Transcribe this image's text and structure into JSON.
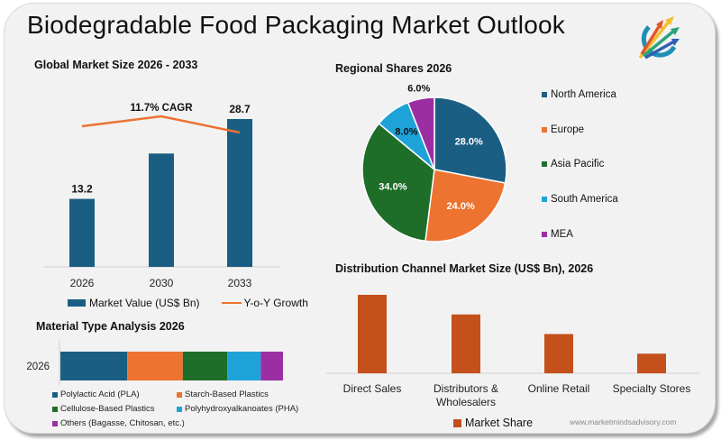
{
  "header": {
    "title": "Biodegradable Food Packaging Market Outlook",
    "logo": "growth-arrows-logo-icon"
  },
  "footer": {
    "url": "www.marketmindsadvisory.com"
  },
  "colors": {
    "navy": "#1a5f83",
    "orange": "#ec7330",
    "green": "#1e6e2a",
    "cyan": "#1ea3d9",
    "purple": "#9b2ea3",
    "rust": "#c4501b"
  },
  "chart_data": [
    {
      "id": "global_market",
      "type": "bar",
      "title": "Global Market Size 2026 - 2033",
      "categories": [
        "2026",
        "2030",
        "2033"
      ],
      "series": [
        {
          "name": "Market Value (US$ Bn)",
          "values": [
            13.2,
            22.0,
            28.7
          ],
          "data_labels": [
            "13.2",
            null,
            "28.7"
          ]
        },
        {
          "name": "Y-o-Y Growth",
          "type": "line",
          "values": [
            null,
            null,
            null
          ]
        }
      ],
      "annotation": "11.7% CAGR",
      "ylim": [
        0,
        30
      ],
      "grid": false,
      "legend": "bottom"
    },
    {
      "id": "regional_shares",
      "type": "pie",
      "title": "Regional Shares 2026",
      "labels": [
        "North America",
        "Europe",
        "Asia Pacific",
        "South America",
        "MEA"
      ],
      "values": [
        28.0,
        24.0,
        34.0,
        8.0,
        6.0
      ],
      "data_labels": [
        "28.0%",
        "24.0%",
        "34.0%",
        "8.0%",
        "6.0%"
      ],
      "legend": "right"
    },
    {
      "id": "material_type",
      "type": "bar",
      "orientation": "horizontal-stacked",
      "title": "Material Type Analysis 2026",
      "categories": [
        "2026"
      ],
      "series": [
        {
          "name": "Polylactic Acid (PLA)",
          "values": [
            30
          ]
        },
        {
          "name": "Starch-Based Plastics",
          "values": [
            25
          ]
        },
        {
          "name": "Cellulose-Based Plastics",
          "values": [
            20
          ]
        },
        {
          "name": "Polyhydroxyalkanoates (PHA)",
          "values": [
            15
          ]
        },
        {
          "name": "Others (Bagasse, Chitosan, etc.)",
          "values": [
            10
          ]
        }
      ],
      "legend": "bottom"
    },
    {
      "id": "distribution_channel",
      "type": "bar",
      "title": "Distribution Channel Market Size (US$ Bn), 2026",
      "categories": [
        "Direct Sales",
        "Distributors & Wholesalers",
        "Online Retail",
        "Specialty Stores"
      ],
      "category_lines": [
        [
          "Direct Sales"
        ],
        [
          "Distributors &",
          "Wholesalers"
        ],
        [
          "Online Retail"
        ],
        [
          "Specialty Stores"
        ]
      ],
      "series": [
        {
          "name": "Market Share",
          "values": [
            40,
            30,
            20,
            10
          ]
        }
      ],
      "ylim": [
        0,
        45
      ],
      "legend": "bottom"
    }
  ]
}
